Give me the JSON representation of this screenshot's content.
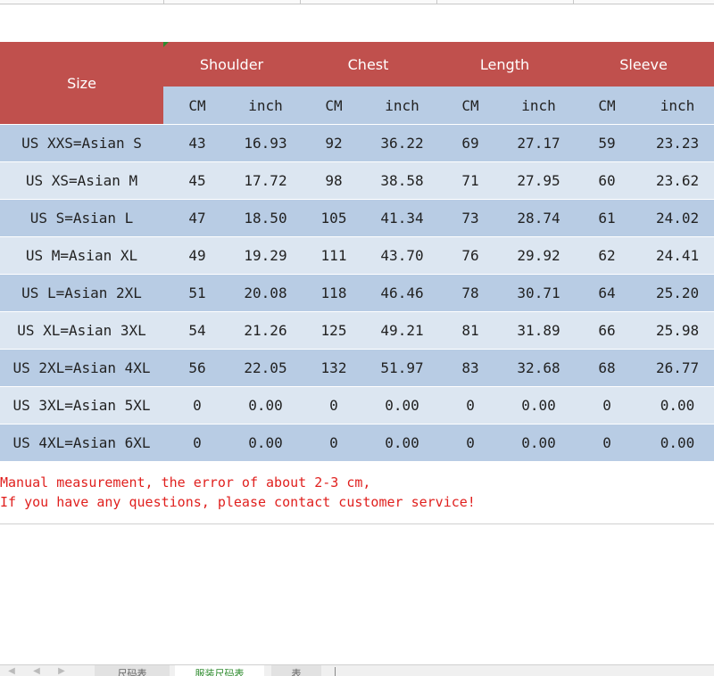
{
  "table": {
    "size_header": "Size",
    "groups": [
      "Shoulder",
      "Chest",
      "Length",
      "Sleeve"
    ],
    "units": [
      "CM",
      "inch",
      "CM",
      "inch",
      "CM",
      "inch",
      "CM",
      "inch"
    ],
    "rows": [
      {
        "size": "US XXS=Asian S",
        "values": [
          "43",
          "16.93",
          "92",
          "36.22",
          "69",
          "27.17",
          "59",
          "23.23"
        ]
      },
      {
        "size": "US XS=Asian M",
        "values": [
          "45",
          "17.72",
          "98",
          "38.58",
          "71",
          "27.95",
          "60",
          "23.62"
        ]
      },
      {
        "size": "US S=Asian L",
        "values": [
          "47",
          "18.50",
          "105",
          "41.34",
          "73",
          "28.74",
          "61",
          "24.02"
        ]
      },
      {
        "size": "US M=Asian XL",
        "values": [
          "49",
          "19.29",
          "111",
          "43.70",
          "76",
          "29.92",
          "62",
          "24.41"
        ]
      },
      {
        "size": "US L=Asian 2XL",
        "values": [
          "51",
          "20.08",
          "118",
          "46.46",
          "78",
          "30.71",
          "64",
          "25.20"
        ]
      },
      {
        "size": "US XL=Asian 3XL",
        "values": [
          "54",
          "21.26",
          "125",
          "49.21",
          "81",
          "31.89",
          "66",
          "25.98"
        ]
      },
      {
        "size": "US 2XL=Asian 4XL",
        "values": [
          "56",
          "22.05",
          "132",
          "51.97",
          "83",
          "32.68",
          "68",
          "26.77"
        ]
      },
      {
        "size": "US 3XL=Asian 5XL",
        "values": [
          "0",
          "0.00",
          "0",
          "0.00",
          "0",
          "0.00",
          "0",
          "0.00"
        ]
      },
      {
        "size": "US 4XL=Asian 6XL",
        "values": [
          "0",
          "0.00",
          "0",
          "0.00",
          "0",
          "0.00",
          "0",
          "0.00"
        ]
      }
    ]
  },
  "notes": [
    "Manual measurement, the error of about 2-3 cm,",
    "If you have any questions, please contact customer service!"
  ],
  "sheet_tabs": [
    "尺码表",
    "服装尺码表",
    "表"
  ],
  "colors": {
    "header_red": "#c0504d",
    "row_blue_dark": "#b8cce4",
    "row_blue_light": "#dce6f1",
    "note_red": "#e0201e",
    "active_tab_green": "#2e8b2e"
  }
}
